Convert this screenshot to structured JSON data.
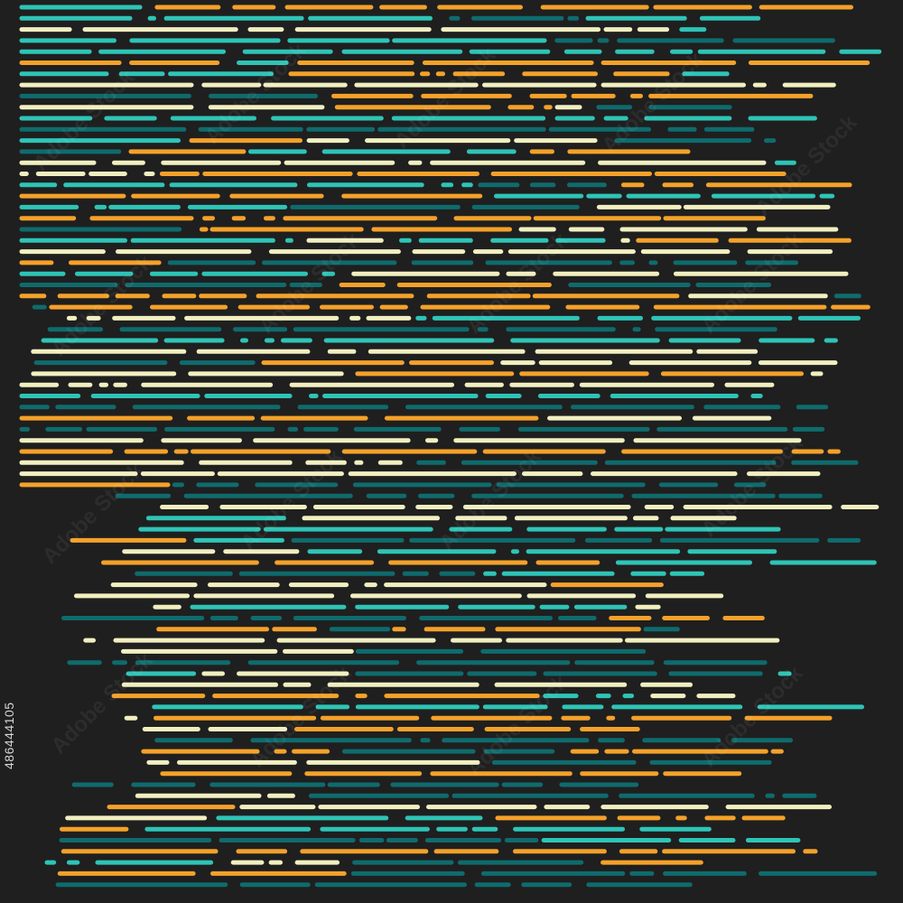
{
  "image": {
    "palette": {
      "background": "#1f1f1f",
      "teal_light": "#2ec4b6",
      "teal_dark": "#0f6b6d",
      "orange": "#f4a12a",
      "cream": "#f1efc0"
    },
    "stock_id": "486444105",
    "watermark": "Adobe Stock"
  }
}
